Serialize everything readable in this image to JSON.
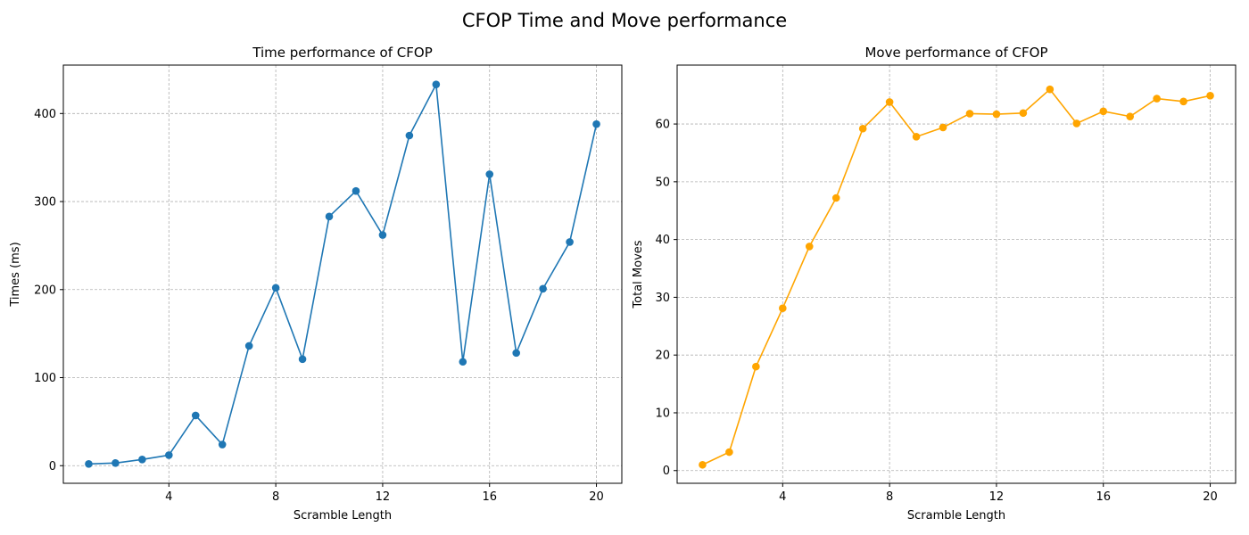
{
  "figure": {
    "title": "CFOP Time and Move performance"
  },
  "chart_data": [
    {
      "type": "line",
      "title": "Time performance of CFOP",
      "xlabel": "Scramble Length",
      "ylabel": "Times (ms)",
      "xlim": [
        0.05,
        20.95
      ],
      "ylim": [
        -20,
        455
      ],
      "xticks": [
        4,
        8,
        12,
        16,
        20
      ],
      "yticks": [
        0,
        100,
        200,
        300,
        400
      ],
      "grid": true,
      "series": [
        {
          "color": "#1f77b4",
          "marker": "circle",
          "x": [
            1,
            2,
            3,
            4,
            5,
            6,
            7,
            8,
            9,
            10,
            11,
            12,
            13,
            14,
            15,
            16,
            17,
            18,
            19,
            20
          ],
          "y": [
            2,
            3,
            7,
            12,
            57,
            24,
            136,
            202,
            121,
            283,
            312,
            262,
            375,
            433,
            118,
            331,
            128,
            201,
            254,
            388
          ]
        }
      ]
    },
    {
      "type": "line",
      "title": "Move performance of CFOP",
      "xlabel": "Scramble Length",
      "ylabel": "Total Moves",
      "xlim": [
        0.05,
        20.95
      ],
      "ylim": [
        -2.2,
        70.2
      ],
      "xticks": [
        4,
        8,
        12,
        16,
        20
      ],
      "yticks": [
        0,
        10,
        20,
        30,
        40,
        50,
        60
      ],
      "grid": true,
      "series": [
        {
          "color": "#ffa500",
          "marker": "circle",
          "x": [
            1,
            2,
            3,
            4,
            5,
            6,
            7,
            8,
            9,
            10,
            11,
            12,
            13,
            14,
            15,
            16,
            17,
            18,
            19,
            20
          ],
          "y": [
            1,
            3.2,
            18,
            28.1,
            38.8,
            47.2,
            59.2,
            63.8,
            57.8,
            59.4,
            61.8,
            61.7,
            61.9,
            66,
            60.1,
            62.2,
            61.3,
            64.4,
            63.9,
            64.9
          ]
        }
      ]
    }
  ]
}
